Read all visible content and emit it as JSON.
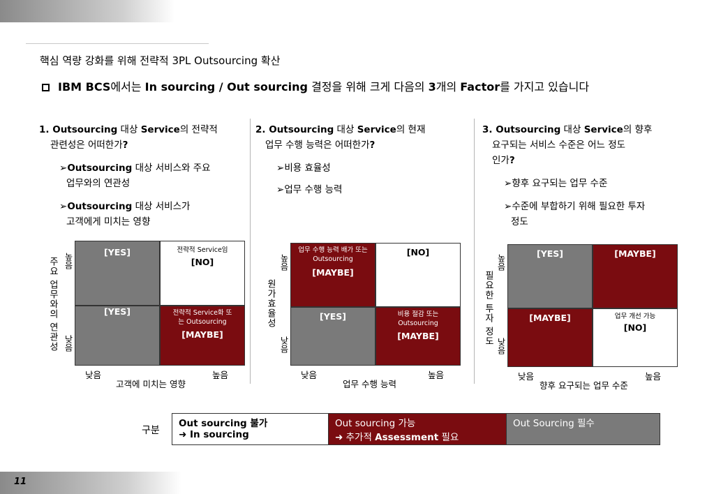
{
  "page_number": "11",
  "subtitle": "핵심 역량 강화를 위해 전략적 3PL Outsourcing 확산",
  "headline": {
    "bold1": "IBM BCS",
    "reg1": "에서는 ",
    "bold2": "In sourcing / Out sourcing",
    "reg2": " 결정을 위해 크게 다음의 ",
    "bold3": "3",
    "reg3": "개의 ",
    "bold4": "Factor",
    "reg4": "를 가지고 있습니다"
  },
  "sections": [
    {
      "q_line1_a": "1. Outsourcing",
      "q_line1_b": " 대상 ",
      "q_line1_c": "Service",
      "q_line1_d": "의 전략적",
      "q_line2_a": "관련성은 어떠한가",
      "q_line2_b": "?",
      "items": [
        {
          "bold": "Outsourcing",
          "text": " 대상 서비스와 주요",
          "line2": "업무와의 연관성"
        },
        {
          "bold": "Outsourcing",
          "text": " 대상 서비스가",
          "line2": "고객에게 미치는 영향"
        }
      ],
      "y_axis": "주요 업무와의 연관성",
      "x_axis": "고객에 미치는 영향",
      "high": "높음",
      "low": "낮음",
      "cells": {
        "tl": {
          "small": "",
          "big": "[YES]"
        },
        "tr": {
          "small": "전략적 Service임",
          "big": "[NO]"
        },
        "bl": {
          "small": "",
          "big": "[YES]"
        },
        "br": {
          "small": "전략적 Service화 또는 Outsourcing",
          "big": "[MAYBE]"
        }
      }
    },
    {
      "q_line1_a": "2. Outsourcing",
      "q_line1_b": " 대상 ",
      "q_line1_c": "Service",
      "q_line1_d": "의 현재",
      "q_line2_a": "업무 수행 능력은 어떠한가",
      "q_line2_b": "?",
      "items": [
        {
          "bold": "",
          "text": "비용 효율성",
          "line2": ""
        },
        {
          "bold": "",
          "text": "업무 수행 능력",
          "line2": ""
        }
      ],
      "y_axis": "원가효율성",
      "x_axis": "업무 수행 능력",
      "high": "높음",
      "low": "낮음",
      "cells": {
        "tl": {
          "small": "업무 수행 능력 배가 또는 Outsourcing",
          "big": "[MAYBE]"
        },
        "tr": {
          "small": "",
          "big": "[NO]"
        },
        "bl": {
          "small": "",
          "big": "[YES]"
        },
        "br": {
          "small": "비용 절감 또는 Outsourcing",
          "big": "[MAYBE]"
        }
      }
    },
    {
      "q_line1_a": "3. Outsourcing",
      "q_line1_b": " 대상 ",
      "q_line1_c": "Service",
      "q_line1_d": "의 향후",
      "q_line2_a": "요구되는 서비스 수준은 어느 정도",
      "q_line3": "인가",
      "q_line2_b": "?",
      "items": [
        {
          "bold": "",
          "text": "향후 요구되는 업무 수준",
          "line2": ""
        },
        {
          "bold": "",
          "text": "수준에 부합하기 위해 필요한 투자",
          "line2": "정도"
        }
      ],
      "y_axis": "필요한 투자 정도",
      "x_axis": "향후 요구되는 업무 수준",
      "high": "높음",
      "low": "낮음",
      "cells": {
        "tl": {
          "small": "",
          "big": "[YES]"
        },
        "tr": {
          "small": "",
          "big": "[MAYBE]"
        },
        "bl": {
          "small": "",
          "big": "[MAYBE]"
        },
        "br": {
          "small": "업무 개선 가능",
          "big": "[NO]"
        }
      }
    }
  ],
  "legend": {
    "label": "구분",
    "col1_l1": "Out sourcing 불가",
    "col1_l2": "➜ In sourcing",
    "col2_l1": "Out sourcing 가능",
    "col2_l2a": "➜ 추가적 ",
    "col2_l2b": "Assessment",
    "col2_l2c": " 필요",
    "col3_l1": "Out Sourcing 필수"
  },
  "colors": {
    "red": "#7a0c10",
    "gray": "#7a7a7a"
  }
}
